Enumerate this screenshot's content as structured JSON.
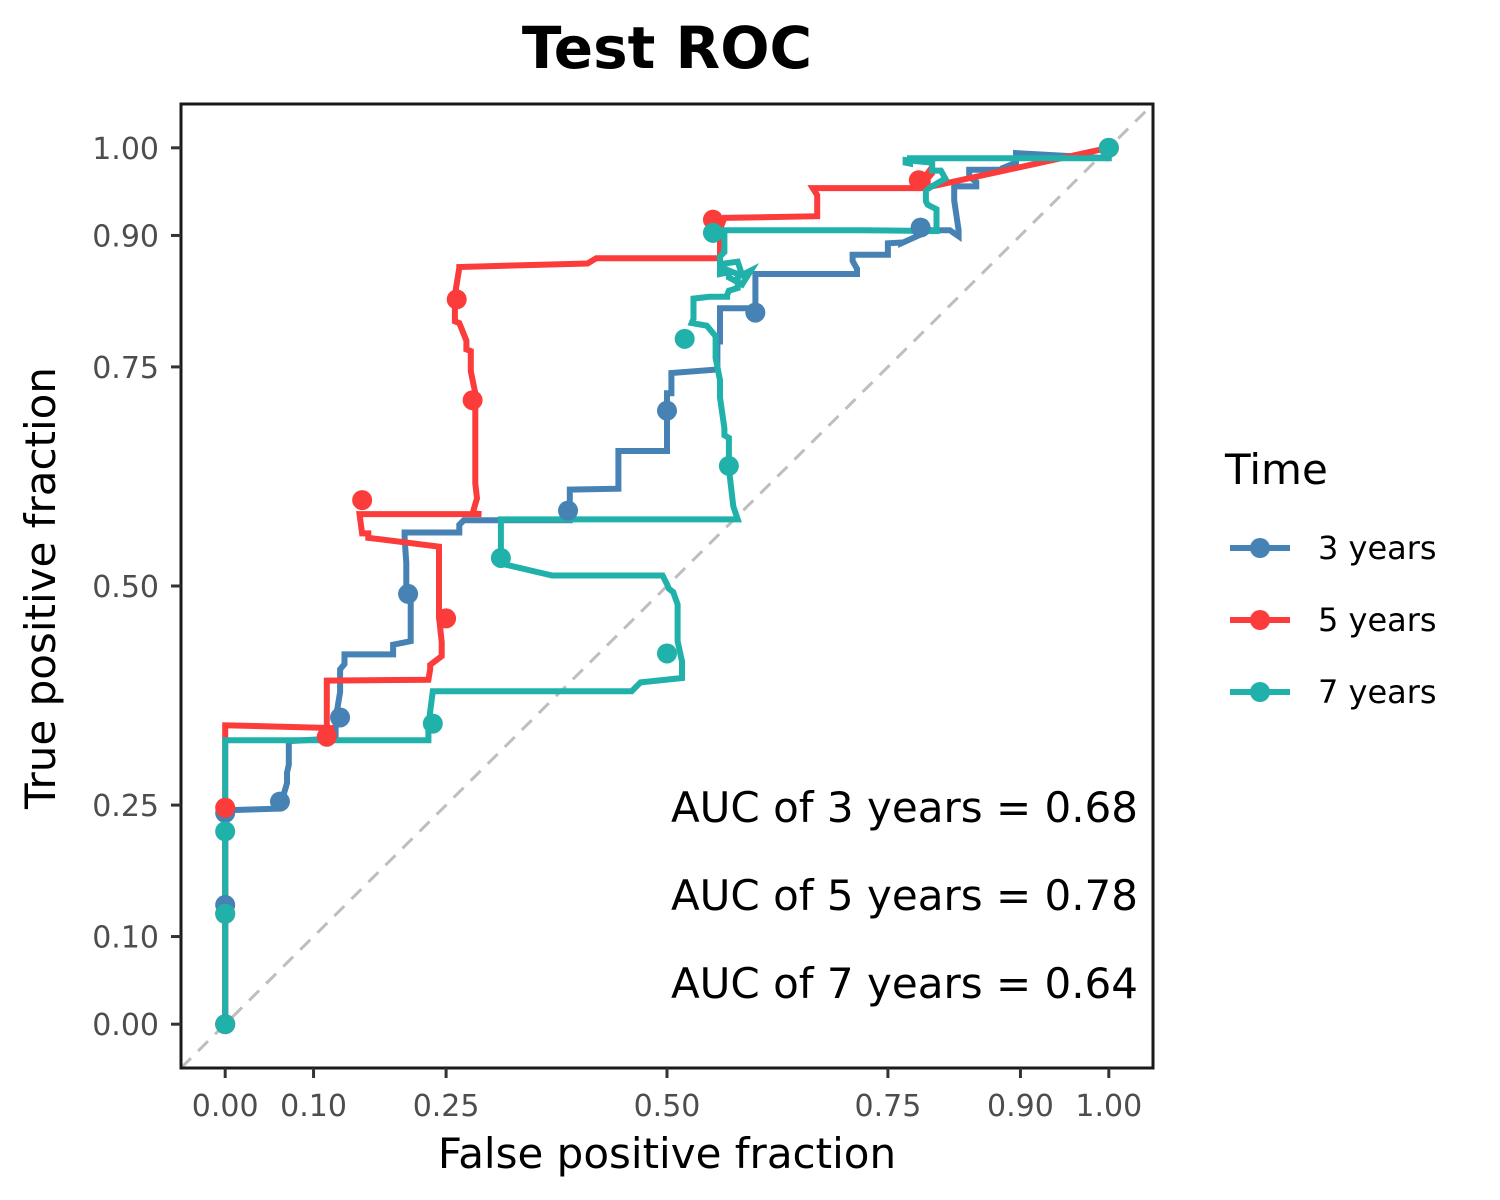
{
  "chart_data": {
    "type": "line",
    "title": "Test ROC",
    "xlabel": "False positive fraction",
    "ylabel": "True positive fraction",
    "xlim": [
      -0.05,
      1.05
    ],
    "ylim": [
      -0.05,
      1.05
    ],
    "x_ticks": [
      0.0,
      0.1,
      0.25,
      0.5,
      0.75,
      0.9,
      1.0
    ],
    "x_tick_labels": [
      "0.00",
      "0.10",
      "0.25",
      "0.50",
      "0.75",
      "0.90",
      "1.00"
    ],
    "y_ticks": [
      0.0,
      0.1,
      0.25,
      0.5,
      0.75,
      0.9,
      1.0
    ],
    "y_tick_labels": [
      "0.00",
      "0.10",
      "0.25",
      "0.50",
      "0.75",
      "0.90",
      "1.00"
    ],
    "grid": false,
    "reference_line": {
      "style": "dashed",
      "color": "#bebebe",
      "from": [
        -0.05,
        -0.05
      ],
      "to": [
        1.05,
        1.05
      ]
    },
    "legend": {
      "title": "Time",
      "position": "right"
    },
    "series": [
      {
        "name": "3 years",
        "color": "#4682b4",
        "x": [
          0.0,
          0.0,
          0.0,
          0.0,
          0.0,
          0.062,
          0.062,
          0.065,
          0.07,
          0.07,
          0.072,
          0.072,
          0.125,
          0.125,
          0.13,
          0.13,
          0.135,
          0.135,
          0.19,
          0.19,
          0.21,
          0.21,
          0.205,
          0.205,
          0.203,
          0.203,
          0.265,
          0.265,
          0.27,
          0.27,
          0.39,
          0.39,
          0.445,
          0.445,
          0.5,
          0.5,
          0.505,
          0.505,
          0.557,
          0.557,
          0.56,
          0.56,
          0.6,
          0.6,
          0.6,
          0.715,
          0.715,
          0.71,
          0.71,
          0.75,
          0.75,
          0.765,
          0.765,
          0.798,
          0.82,
          0.83,
          0.83,
          0.825,
          0.825,
          0.85,
          0.85,
          0.842,
          0.842,
          0.88,
          0.88,
          0.895,
          0.895,
          1.0
        ],
        "y": [
          0.0,
          0.136,
          0.114,
          0.241,
          0.244,
          0.246,
          0.246,
          0.258,
          0.275,
          0.287,
          0.296,
          0.323,
          0.326,
          0.348,
          0.379,
          0.405,
          0.411,
          0.422,
          0.422,
          0.433,
          0.437,
          0.488,
          0.5,
          0.526,
          0.555,
          0.561,
          0.561,
          0.57,
          0.575,
          0.575,
          0.575,
          0.61,
          0.611,
          0.654,
          0.654,
          0.72,
          0.72,
          0.743,
          0.747,
          0.779,
          0.779,
          0.817,
          0.817,
          0.831,
          0.856,
          0.856,
          0.862,
          0.871,
          0.878,
          0.878,
          0.891,
          0.892,
          0.891,
          0.906,
          0.906,
          0.899,
          0.906,
          0.94,
          0.956,
          0.956,
          0.961,
          0.967,
          0.975,
          0.975,
          0.977,
          0.983,
          0.994,
          0.988
        ]
      },
      {
        "name": "5 years",
        "color": "#fc3b3b",
        "x": [
          0.0,
          0.0,
          0.0,
          0.0,
          0.0,
          0.12,
          0.12,
          0.115,
          0.115,
          0.23,
          0.232,
          0.232,
          0.245,
          0.245,
          0.242,
          0.242,
          0.162,
          0.162,
          0.155,
          0.152,
          0.195,
          0.29,
          0.28,
          0.285,
          0.283,
          0.283,
          0.278,
          0.278,
          0.273,
          0.273,
          0.265,
          0.26,
          0.26,
          0.265,
          0.265,
          0.41,
          0.42,
          0.56,
          0.56,
          0.565,
          0.565,
          0.67,
          0.67,
          0.665,
          0.665,
          0.795,
          0.795,
          0.8,
          0.8,
          0.795,
          0.795,
          1.0
        ],
        "y": [
          0.0,
          0.119,
          0.14,
          0.244,
          0.341,
          0.338,
          0.336,
          0.319,
          0.392,
          0.393,
          0.405,
          0.41,
          0.42,
          0.436,
          0.465,
          0.545,
          0.555,
          0.56,
          0.56,
          0.582,
          0.582,
          0.582,
          0.583,
          0.6,
          0.617,
          0.72,
          0.745,
          0.768,
          0.77,
          0.78,
          0.8,
          0.802,
          0.832,
          0.863,
          0.864,
          0.868,
          0.874,
          0.874,
          0.907,
          0.92,
          0.92,
          0.922,
          0.946,
          0.954,
          0.954,
          0.954,
          0.971,
          0.978,
          0.971,
          0.965,
          0.955,
          1.0
        ]
      },
      {
        "name": "7 years",
        "color": "#20b2aa",
        "x": [
          0.0,
          0.0,
          0.0,
          0.0,
          0.23,
          0.23,
          0.235,
          0.46,
          0.465,
          0.47,
          0.517,
          0.517,
          0.512,
          0.512,
          0.507,
          0.502,
          0.5,
          0.495,
          0.488,
          0.488,
          0.37,
          0.315,
          0.315,
          0.312,
          0.312,
          0.58,
          0.575,
          0.57,
          0.57,
          0.565,
          0.565,
          0.56,
          0.56,
          0.555,
          0.555,
          0.555,
          0.545,
          0.528,
          0.53,
          0.53,
          0.548,
          0.568,
          0.568,
          0.57,
          0.58,
          0.58,
          0.565,
          0.565,
          0.58,
          0.585,
          0.595,
          0.585,
          0.57,
          0.57,
          0.56,
          0.56,
          0.565,
          0.565,
          0.65,
          0.7,
          0.72,
          0.805,
          0.805,
          0.795,
          0.793,
          0.793,
          0.815,
          0.81,
          0.8,
          0.8,
          0.77,
          0.77,
          0.775,
          0.775,
          1.0,
          1.0
        ],
        "y": [
          0.0,
          0.113,
          0.225,
          0.324,
          0.324,
          0.341,
          0.38,
          0.38,
          0.385,
          0.39,
          0.395,
          0.414,
          0.437,
          0.479,
          0.493,
          0.497,
          0.502,
          0.512,
          0.512,
          0.512,
          0.512,
          0.525,
          0.532,
          0.541,
          0.576,
          0.576,
          0.591,
          0.634,
          0.669,
          0.672,
          0.68,
          0.715,
          0.735,
          0.76,
          0.785,
          0.785,
          0.797,
          0.8,
          0.805,
          0.828,
          0.83,
          0.83,
          0.832,
          0.837,
          0.84,
          0.856,
          0.862,
          0.868,
          0.87,
          0.855,
          0.86,
          0.844,
          0.852,
          0.858,
          0.856,
          0.876,
          0.881,
          0.906,
          0.906,
          0.906,
          0.906,
          0.905,
          0.93,
          0.935,
          0.939,
          0.952,
          0.965,
          0.974,
          0.974,
          0.983,
          0.986,
          0.983,
          0.982,
          0.988,
          0.988,
          1.0
        ]
      }
    ],
    "markers": [
      {
        "series": "3 years",
        "points": [
          [
            0.0,
            0.0
          ],
          [
            0.0,
            0.136
          ],
          [
            0.0,
            0.241
          ],
          [
            0.062,
            0.254
          ],
          [
            0.13,
            0.35
          ],
          [
            0.207,
            0.491
          ],
          [
            0.388,
            0.586
          ],
          [
            0.5,
            0.7
          ],
          [
            0.6,
            0.812
          ],
          [
            0.787,
            0.909
          ],
          [
            1.0,
            1.0
          ]
        ]
      },
      {
        "series": "5 years",
        "points": [
          [
            0.0,
            0.0
          ],
          [
            0.0,
            0.126
          ],
          [
            0.0,
            0.247
          ],
          [
            0.115,
            0.328
          ],
          [
            0.155,
            0.598
          ],
          [
            0.25,
            0.463
          ],
          [
            0.28,
            0.712
          ],
          [
            0.262,
            0.827
          ],
          [
            0.552,
            0.918
          ],
          [
            0.785,
            0.963
          ],
          [
            1.0,
            1.0
          ]
        ]
      },
      {
        "series": "7 years",
        "points": [
          [
            0.0,
            0.0
          ],
          [
            0.0,
            0.126
          ],
          [
            0.0,
            0.22
          ],
          [
            0.235,
            0.343
          ],
          [
            0.312,
            0.532
          ],
          [
            0.5,
            0.423
          ],
          [
            0.57,
            0.637
          ],
          [
            0.52,
            0.782
          ],
          [
            0.552,
            0.903
          ],
          [
            1.0,
            1.0
          ]
        ]
      }
    ],
    "annotations": [
      "AUC of 3 years = 0.68",
      "AUC of 5 years = 0.78",
      "AUC of 7 years = 0.64"
    ]
  }
}
